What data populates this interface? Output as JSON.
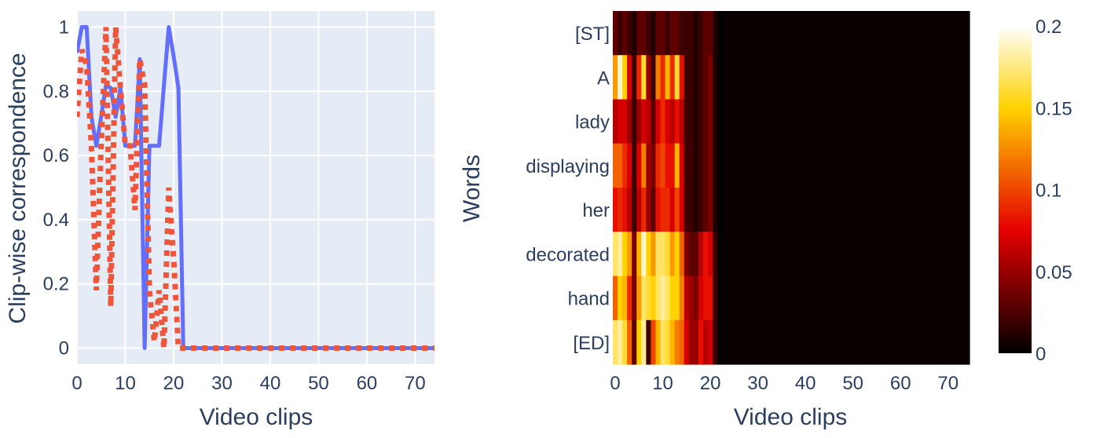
{
  "chart_data": [
    {
      "type": "line",
      "xlabel": "Video clips",
      "ylabel": "Clip-wise correspondence",
      "xlim": [
        0,
        74
      ],
      "ylim": [
        -0.05,
        1.05
      ],
      "xticks": [
        "0",
        "10",
        "20",
        "30",
        "40",
        "50",
        "60",
        "70"
      ],
      "yticks": [
        "0",
        "0.2",
        "0.4",
        "0.6",
        "0.8",
        "1"
      ],
      "grid": true,
      "background": "#e5ecf6",
      "series": [
        {
          "style": "solid",
          "color": "#636efa",
          "x": [
            0,
            1,
            2,
            3,
            4,
            5,
            6,
            7,
            8,
            9,
            10,
            11,
            12,
            13,
            14,
            15,
            16,
            17,
            18,
            19,
            20,
            21,
            22,
            74
          ],
          "y": [
            0.92,
            1.0,
            1.0,
            0.72,
            0.63,
            0.72,
            0.82,
            0.81,
            0.72,
            0.81,
            0.63,
            0.63,
            0.63,
            0.9,
            0.0,
            0.63,
            0.63,
            0.63,
            0.82,
            1.0,
            0.91,
            0.81,
            0.0,
            0.0
          ]
        },
        {
          "style": "dotted",
          "color": "#ef553b",
          "x": [
            0,
            1,
            2,
            3,
            4,
            5,
            6,
            7,
            8,
            9,
            10,
            11,
            12,
            13,
            14,
            15,
            16,
            17,
            18,
            19,
            20,
            21,
            22,
            74
          ],
          "y": [
            0.72,
            0.93,
            0.88,
            0.63,
            0.18,
            0.63,
            1.0,
            0.13,
            1.0,
            0.81,
            0.63,
            0.63,
            0.43,
            0.9,
            0.82,
            0.18,
            0.02,
            0.18,
            0.0,
            0.5,
            0.28,
            0.0,
            0.0,
            0.0
          ]
        }
      ]
    },
    {
      "type": "heatmap",
      "xlabel": "Video clips",
      "ylabel": "Words",
      "xlim": [
        -0.5,
        74.5
      ],
      "xticks": [
        "0",
        "10",
        "20",
        "30",
        "40",
        "50",
        "60",
        "70"
      ],
      "rows": [
        "[ST]",
        "A",
        "lady",
        "displaying",
        "her",
        "decorated",
        "hand",
        "[ED]"
      ],
      "colorscale": "hot",
      "zmin": 0,
      "zmax": 0.2,
      "colorbar_ticks": [
        "0",
        "0.05",
        "0.1",
        "0.15",
        "0.2"
      ],
      "values": [
        [
          0.03,
          0.02,
          0.03,
          0.02,
          0.01,
          0.03,
          0.03,
          0.02,
          0.01,
          0.03,
          0.03,
          0.02,
          0.03,
          0.03,
          0.02,
          0.02,
          0.02,
          0.01,
          0.02,
          0.03,
          0.03,
          0.01,
          0.0
        ],
        [
          0.13,
          0.19,
          0.15,
          0.07,
          0.02,
          0.09,
          0.16,
          0.05,
          0.02,
          0.12,
          0.09,
          0.14,
          0.09,
          0.16,
          0.08,
          0.02,
          0.02,
          0.01,
          0.02,
          0.03,
          0.04,
          0.01,
          0.0
        ],
        [
          0.06,
          0.07,
          0.07,
          0.05,
          0.02,
          0.05,
          0.07,
          0.06,
          0.03,
          0.07,
          0.09,
          0.07,
          0.06,
          0.08,
          0.06,
          0.02,
          0.02,
          0.01,
          0.02,
          0.03,
          0.04,
          0.01,
          0.0
        ],
        [
          0.11,
          0.11,
          0.09,
          0.07,
          0.02,
          0.07,
          0.12,
          0.05,
          0.04,
          0.09,
          0.1,
          0.08,
          0.08,
          0.14,
          0.07,
          0.02,
          0.02,
          0.01,
          0.02,
          0.03,
          0.04,
          0.01,
          0.0
        ],
        [
          0.08,
          0.09,
          0.08,
          0.06,
          0.02,
          0.06,
          0.09,
          0.05,
          0.03,
          0.08,
          0.09,
          0.09,
          0.07,
          0.1,
          0.07,
          0.02,
          0.02,
          0.01,
          0.02,
          0.03,
          0.04,
          0.01,
          0.0
        ],
        [
          0.17,
          0.18,
          0.15,
          0.13,
          0.04,
          0.14,
          0.19,
          0.15,
          0.13,
          0.17,
          0.17,
          0.16,
          0.13,
          0.15,
          0.11,
          0.04,
          0.03,
          0.03,
          0.06,
          0.08,
          0.07,
          0.02,
          0.0
        ],
        [
          0.11,
          0.15,
          0.14,
          0.09,
          0.04,
          0.13,
          0.17,
          0.16,
          0.15,
          0.17,
          0.18,
          0.17,
          0.15,
          0.15,
          0.12,
          0.06,
          0.05,
          0.04,
          0.07,
          0.08,
          0.08,
          0.02,
          0.0
        ],
        [
          0.17,
          0.18,
          0.16,
          0.11,
          0.03,
          0.15,
          0.18,
          0.02,
          0.1,
          0.14,
          0.17,
          0.16,
          0.14,
          0.12,
          0.11,
          0.07,
          0.05,
          0.05,
          0.08,
          0.06,
          0.07,
          0.02,
          0.0
        ]
      ],
      "tail_value": 0.003
    }
  ]
}
